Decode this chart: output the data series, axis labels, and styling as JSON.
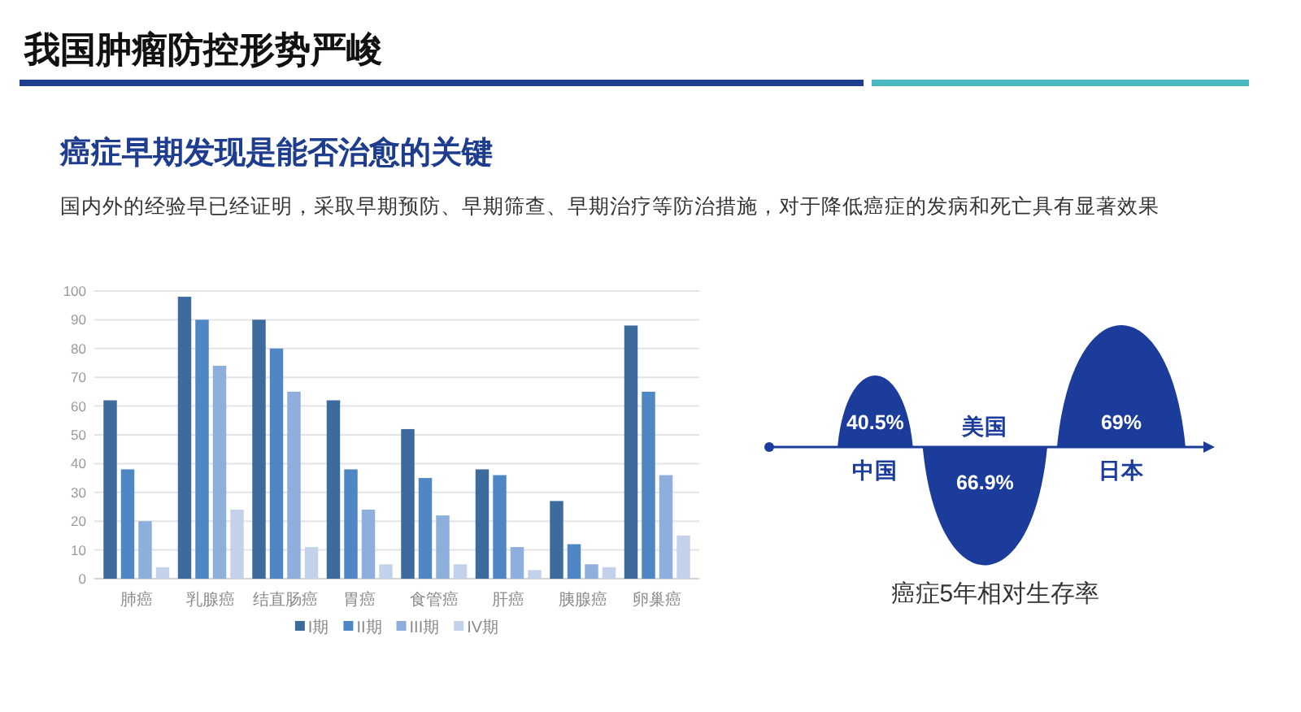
{
  "chart_data": [
    {
      "type": "other",
      "title": "我国肿瘤防控形势严峻",
      "subtitle": "癌症早期发现是能否治愈的关键",
      "annotations": [
        "国内外的经验早已经证明，采取早期预防、早期筛查、早期治疗等防治措施，对于降低癌症的发病和死亡具有显著效果"
      ]
    },
    {
      "type": "bar",
      "categories": [
        "肺癌",
        "乳腺癌",
        "结直肠癌",
        "胃癌",
        "食管癌",
        "肝癌",
        "胰腺癌",
        "卵巢癌"
      ],
      "series": [
        {
          "name": "I期",
          "color": "#3d6b9e",
          "values": [
            62,
            98,
            90,
            62,
            52,
            38,
            27,
            88
          ]
        },
        {
          "name": "II期",
          "color": "#4f87c4",
          "values": [
            38,
            90,
            80,
            38,
            35,
            36,
            12,
            65
          ]
        },
        {
          "name": "III期",
          "color": "#8eaedb",
          "values": [
            20,
            74,
            65,
            24,
            22,
            11,
            5,
            36
          ]
        },
        {
          "name": "IV期",
          "color": "#c3d2ea",
          "values": [
            4,
            24,
            11,
            5,
            5,
            3,
            4,
            15
          ]
        }
      ],
      "ylim": [
        0,
        100
      ],
      "yticks": [
        0,
        10,
        20,
        30,
        40,
        50,
        60,
        70,
        80,
        90,
        100
      ],
      "grid": "y",
      "legend": "bottom"
    },
    {
      "type": "other",
      "title": "癌症5年相对生存率",
      "categories": [
        "中国",
        "美国",
        "日本"
      ],
      "values": [
        40.5,
        66.9,
        69
      ],
      "value_labels": [
        "40.5%",
        "66.9%",
        "69%"
      ],
      "color": "#1b3c9a"
    }
  ]
}
